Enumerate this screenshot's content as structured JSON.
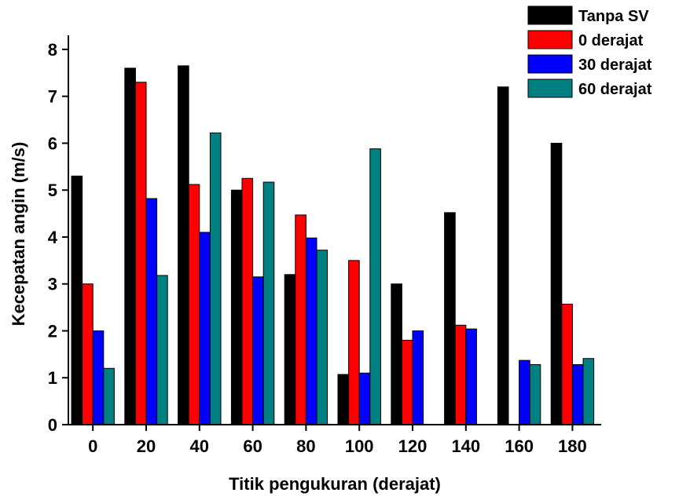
{
  "chart_data": {
    "type": "bar",
    "title": "",
    "xlabel": "Titik pengukuran (derajat)",
    "ylabel": "Kecepatan angin (m/s)",
    "ylim": [
      0,
      8.3
    ],
    "yticks": [
      0,
      1,
      2,
      3,
      4,
      5,
      6,
      7,
      8
    ],
    "categories": [
      "0",
      "20",
      "40",
      "60",
      "80",
      "100",
      "120",
      "140",
      "160",
      "180"
    ],
    "series": [
      {
        "name": "Tanpa SV",
        "color": "#000000",
        "values": [
          5.3,
          7.6,
          7.65,
          5.0,
          3.2,
          1.07,
          3.0,
          4.52,
          7.2,
          6.0
        ]
      },
      {
        "name": "0 derajat",
        "color": "#ff0000",
        "values": [
          3.0,
          7.3,
          5.12,
          5.25,
          4.47,
          3.5,
          1.8,
          2.12,
          null,
          2.57
        ]
      },
      {
        "name": "30 derajat",
        "color": "#0000ff",
        "values": [
          2.0,
          4.82,
          4.1,
          3.15,
          3.98,
          1.1,
          2.0,
          2.04,
          1.37,
          1.28
        ]
      },
      {
        "name": "60 derajat",
        "color": "#008080",
        "values": [
          1.2,
          3.18,
          6.22,
          5.17,
          3.72,
          5.88,
          null,
          null,
          1.28,
          1.41
        ]
      }
    ],
    "legend_position": "top-right",
    "grid": false
  }
}
